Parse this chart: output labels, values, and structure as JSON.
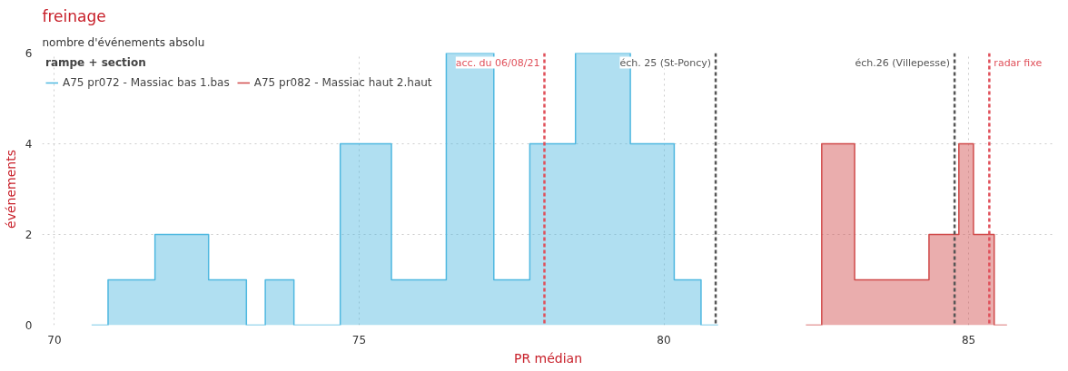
{
  "chart_data": {
    "type": "step",
    "title": "freinage",
    "subtitle": "nombre d'événements absolu",
    "xlabel": "PR médian",
    "ylabel": "événements",
    "legend_title": "rampe + section",
    "series": [
      {
        "name": "A75 pr072 - Massiac bas 1.bas",
        "color": "#4fb8e0",
        "x": [
          70.61,
          70.88,
          71.65,
          72.53,
          73.15,
          73.46,
          73.93,
          74.69,
          75.53,
          76.43,
          77.21,
          77.8,
          78.55,
          79.45,
          80.17,
          80.61,
          80.89
        ],
        "values": [
          0,
          1,
          2,
          1,
          0,
          1,
          0,
          4,
          1,
          6,
          1,
          4,
          6,
          4,
          1,
          0,
          0
        ]
      },
      {
        "name": "A75 pr082 - Massiac haut 2.haut",
        "color": "#d04a4a",
        "x": [
          82.33,
          82.59,
          83.13,
          84.35,
          84.84,
          85.08,
          85.42,
          85.63
        ],
        "values": [
          0,
          4,
          1,
          2,
          4,
          2,
          0,
          0
        ]
      }
    ],
    "ref_lines": [
      {
        "axis": "x",
        "value": 78.04,
        "label": "acc. du 06/08/21",
        "color": "#e0505a",
        "line_style": "dashed"
      },
      {
        "axis": "x",
        "value": 80.85,
        "label": "éch. 25 (St-Poncy)",
        "color": "#555555",
        "line_style": "dashed"
      },
      {
        "axis": "x",
        "value": 84.77,
        "label": "éch.26 (Villepesse)",
        "color": "#555555",
        "line_style": "dashed"
      },
      {
        "axis": "x",
        "value": 85.34,
        "label": "radar fixe",
        "color": "#e0505a",
        "line_style": "dashed"
      }
    ],
    "xlim": [
      69.8,
      86.4
    ],
    "ylim": [
      0,
      6
    ],
    "xticks": [
      70,
      75,
      80,
      85
    ],
    "yticks": [
      0,
      2,
      4,
      6
    ],
    "grid": true,
    "legend": "top left"
  }
}
